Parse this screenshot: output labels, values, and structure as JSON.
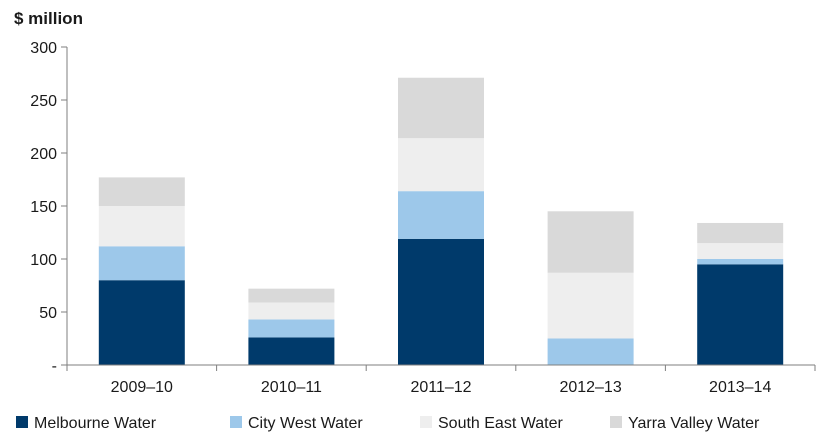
{
  "chart_data": {
    "type": "bar",
    "stacked": true,
    "title": "",
    "xlabel": "",
    "ylabel": "$ million",
    "ylim": [
      0,
      300
    ],
    "yticks": [
      0,
      50,
      100,
      150,
      200,
      250,
      300
    ],
    "ytick_labels": [
      "-",
      "50",
      "100",
      "150",
      "200",
      "250",
      "300"
    ],
    "categories": [
      "2009–10",
      "2010–11",
      "2011–12",
      "2012–13",
      "2013–14"
    ],
    "series": [
      {
        "name": "Melbourne Water",
        "color": "#003a6b",
        "values": [
          80,
          26,
          119,
          0,
          95
        ]
      },
      {
        "name": "City West Water",
        "color": "#9dc8ea",
        "values": [
          32,
          17,
          45,
          25,
          5
        ]
      },
      {
        "name": "South East Water",
        "color": "#eeeeee",
        "values": [
          38,
          16,
          50,
          62,
          15
        ]
      },
      {
        "name": "Yarra Valley Water",
        "color": "#d9d9d9",
        "values": [
          27,
          13,
          57,
          58,
          19
        ]
      }
    ],
    "grid": false,
    "legend": "bottom"
  }
}
